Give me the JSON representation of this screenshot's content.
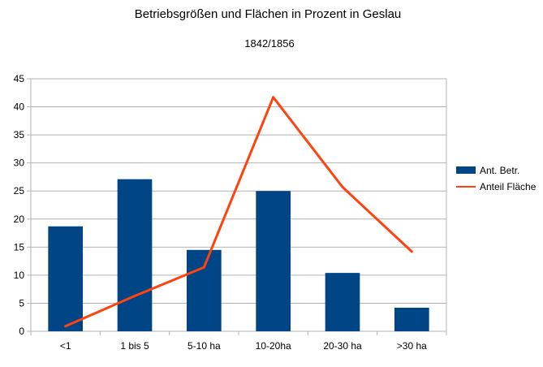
{
  "chart_data": {
    "type": "bar",
    "title": "Betriebsgrößen und Flächen in Prozent in Geslau",
    "subtitle": "1842/1856",
    "xlabel": "",
    "ylabel": "",
    "categories": [
      "<1",
      "1 bis 5",
      "5-10 ha",
      "10-20ha",
      "20-30 ha",
      ">30 ha"
    ],
    "y_ticks": [
      "0",
      "5",
      "10",
      "15",
      "20",
      "25",
      "30",
      "35",
      "40",
      "45"
    ],
    "ylim": [
      0,
      45
    ],
    "grid": true,
    "legend_position": "right",
    "series": [
      {
        "name": "Ant. Betr.",
        "type": "bar",
        "color": "#004586",
        "values": [
          18.7,
          27.1,
          14.5,
          25.0,
          10.4,
          4.2
        ]
      },
      {
        "name": "Anteil Fläche",
        "type": "line",
        "color": "#ff420e",
        "values": [
          0.9,
          6.3,
          11.4,
          41.7,
          25.7,
          14.2
        ]
      }
    ]
  }
}
